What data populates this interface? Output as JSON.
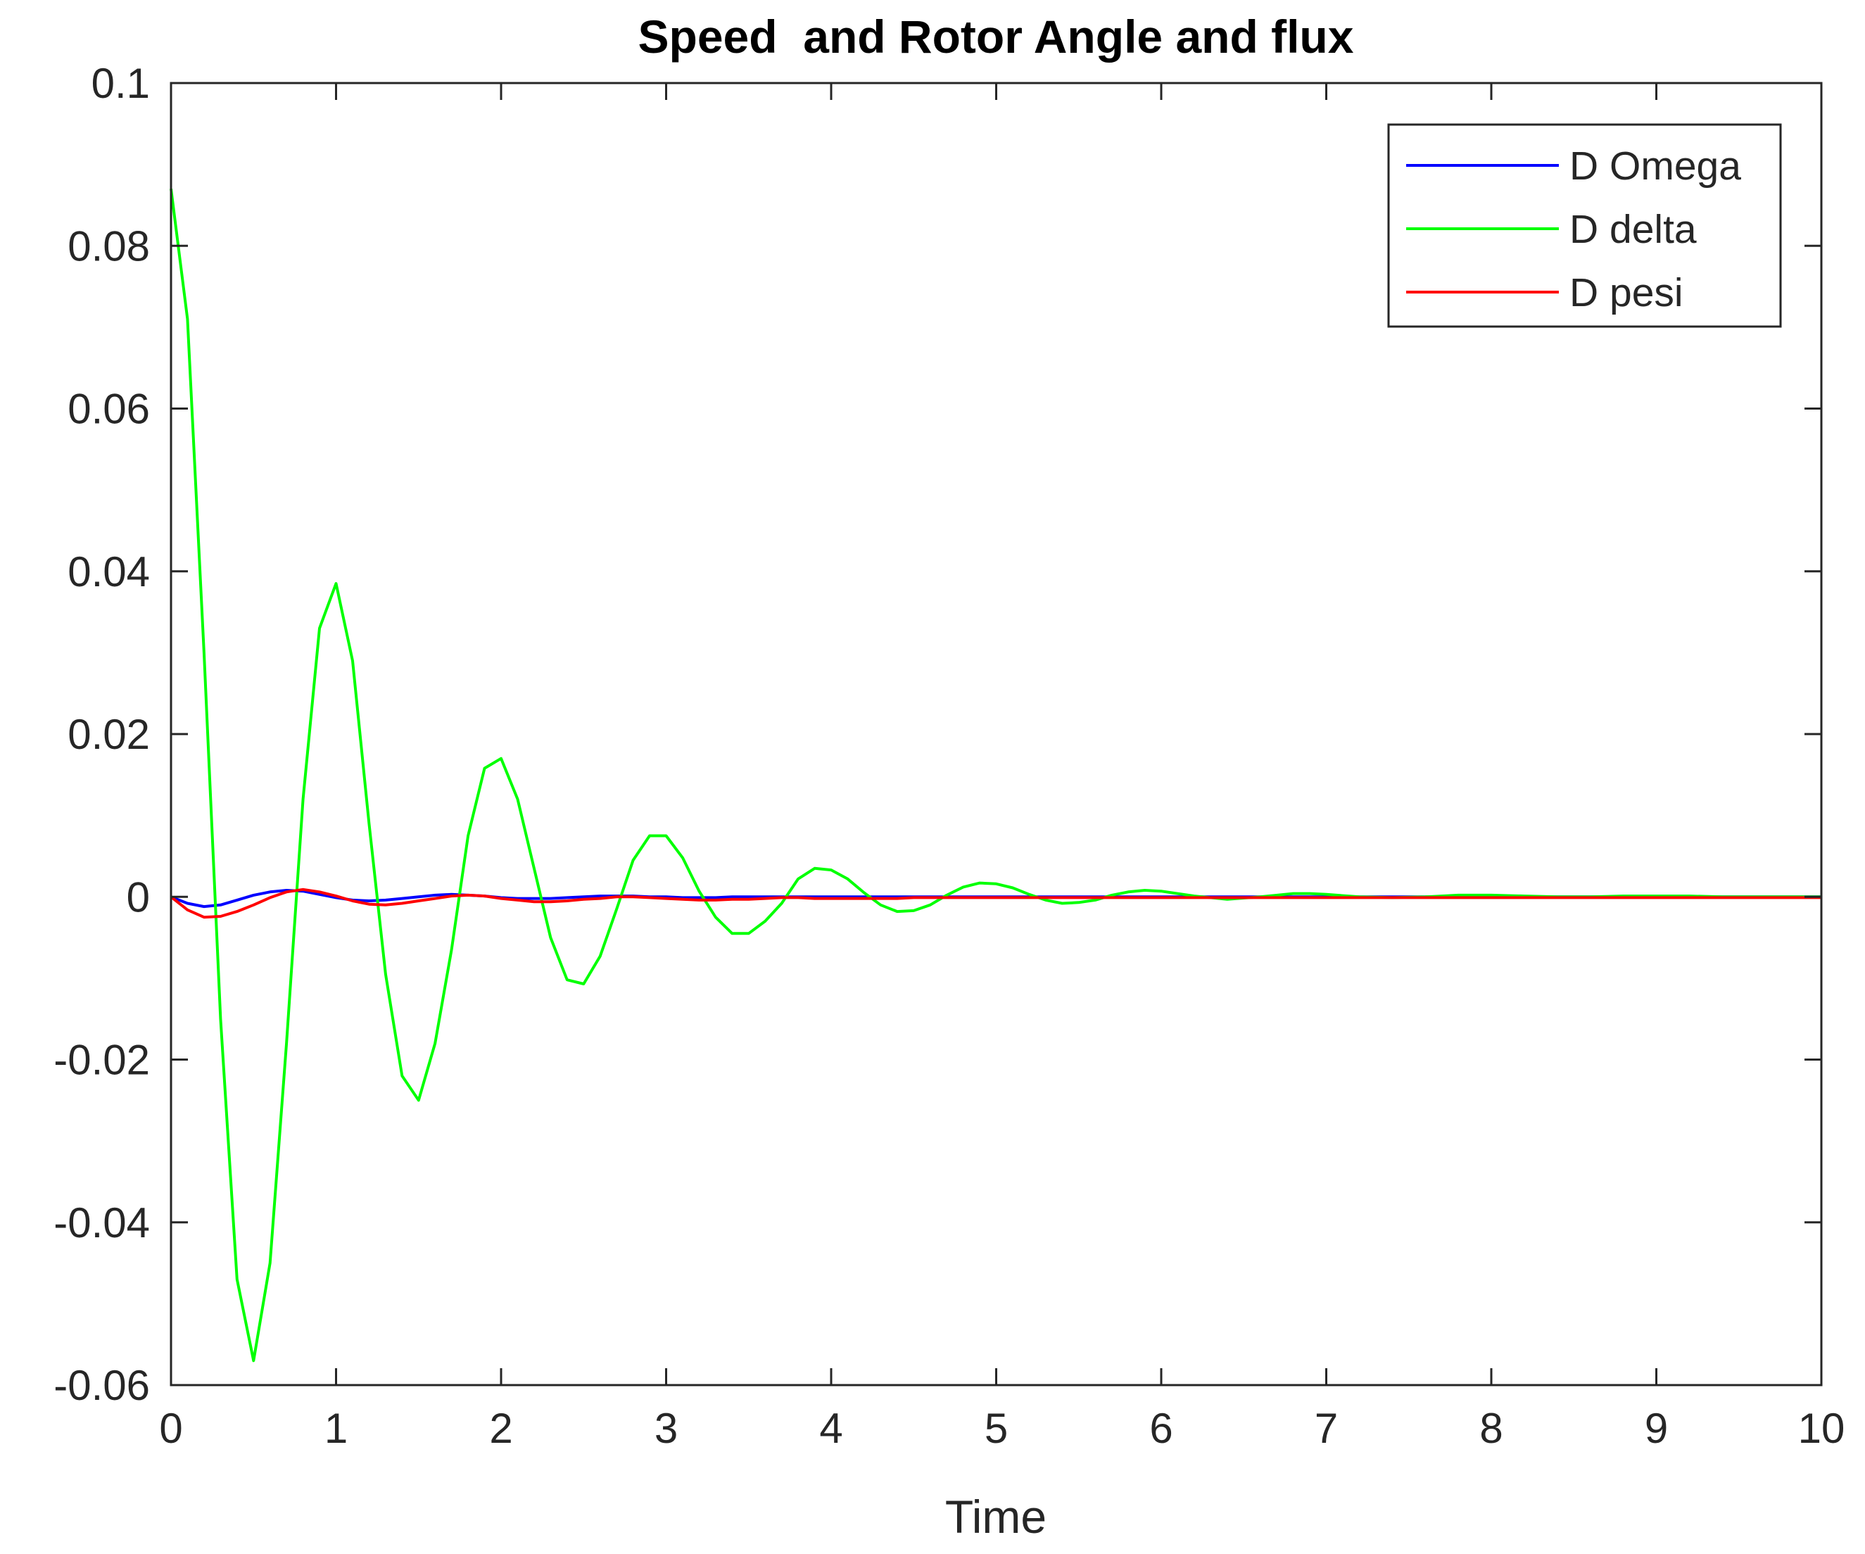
{
  "chart_data": {
    "type": "line",
    "title": "Speed  and Rotor Angle and flux",
    "xlabel": "Time",
    "ylabel": "",
    "xlim": [
      0,
      10
    ],
    "ylim": [
      -0.06,
      0.1
    ],
    "x_ticks": [
      "0",
      "1",
      "2",
      "3",
      "4",
      "5",
      "6",
      "7",
      "8",
      "9",
      "10"
    ],
    "y_ticks": [
      "-0.06",
      "-0.04",
      "-0.02",
      "0",
      "0.02",
      "0.04",
      "0.06",
      "0.08",
      "0.1"
    ],
    "grid": false,
    "legend_position": "top-right",
    "x": [
      0,
      0.1,
      0.2,
      0.3,
      0.4,
      0.5,
      0.6,
      0.7,
      0.8,
      0.9,
      1.0,
      1.1,
      1.2,
      1.3,
      1.4,
      1.5,
      1.6,
      1.7,
      1.8,
      1.9,
      2.0,
      2.1,
      2.2,
      2.3,
      2.4,
      2.5,
      2.6,
      2.7,
      2.8,
      2.9,
      3.0,
      3.1,
      3.2,
      3.3,
      3.4,
      3.5,
      3.6,
      3.7,
      3.8,
      3.9,
      4.0,
      4.1,
      4.2,
      4.3,
      4.4,
      4.5,
      4.6,
      4.7,
      4.8,
      4.9,
      5.0,
      5.1,
      5.2,
      5.3,
      5.4,
      5.5,
      5.6,
      5.7,
      5.8,
      5.9,
      6.0,
      6.2,
      6.4,
      6.6,
      6.8,
      6.9,
      7.0,
      7.2,
      7.4,
      7.6,
      7.8,
      8.0,
      8.2,
      8.4,
      8.6,
      8.8,
      9.0,
      9.2,
      9.4,
      9.6,
      9.8,
      10.0
    ],
    "series": [
      {
        "name": "D Omega",
        "color": "#0000ff",
        "values": [
          0,
          -0.0008,
          -0.0012,
          -0.001,
          -0.0004,
          0.0002,
          0.0006,
          0.0008,
          0.0007,
          0.0003,
          -0.0001,
          -0.0004,
          -0.0005,
          -0.0004,
          -0.0002,
          0,
          0.0002,
          0.0003,
          0.0002,
          0.0001,
          -0.0001,
          -0.0002,
          -0.0002,
          -0.0002,
          -0.0001,
          0,
          0.0001,
          0.0001,
          0.0001,
          0,
          0,
          -0.0001,
          -0.0001,
          -0.0001,
          0,
          0,
          0,
          0,
          0,
          0,
          0,
          0,
          0,
          0,
          0,
          0,
          0,
          0,
          0,
          0,
          0,
          0,
          0,
          0,
          0,
          0,
          0,
          0,
          0,
          0,
          0,
          0,
          0,
          0,
          0,
          0,
          0,
          0,
          0,
          0,
          0,
          0,
          0,
          0,
          0,
          0,
          0,
          0,
          0,
          0,
          0,
          0
        ]
      },
      {
        "name": "D delta",
        "color": "#00ff00",
        "values": [
          0.087,
          0.071,
          0.03,
          -0.015,
          -0.047,
          -0.057,
          -0.045,
          -0.018,
          0.012,
          0.033,
          0.0385,
          0.029,
          0.009,
          -0.0095,
          -0.022,
          -0.025,
          -0.018,
          -0.0065,
          0.0075,
          0.0158,
          0.017,
          0.012,
          0.0035,
          -0.005,
          -0.0102,
          -0.0107,
          -0.0073,
          -0.0015,
          0.0045,
          0.0075,
          0.0075,
          0.0048,
          0.0007,
          -0.0025,
          -0.0045,
          -0.0045,
          -0.003,
          -0.0008,
          0.0022,
          0.0035,
          0.0033,
          0.0022,
          0.0005,
          -0.001,
          -0.0018,
          -0.0017,
          -0.001,
          0.0002,
          0.0012,
          0.0017,
          0.0016,
          0.0011,
          0.0003,
          -0.0004,
          -0.0008,
          -0.0007,
          -0.0004,
          0.0002,
          0.0006,
          0.0008,
          0.0007,
          0.0001,
          -0.0003,
          0,
          0.0004,
          0.0004,
          0.0003,
          0,
          -0.0001,
          0,
          0.0002,
          0.0002,
          0.0001,
          0,
          0,
          0.0001,
          0.0001,
          0.0001,
          0,
          0,
          0,
          0
        ]
      },
      {
        "name": "D pesi",
        "color": "#ff0000",
        "values": [
          0,
          -0.0016,
          -0.0025,
          -0.0024,
          -0.0018,
          -0.001,
          -0.0001,
          0.0006,
          0.0009,
          0.0006,
          0.0001,
          -0.0005,
          -0.0009,
          -0.001,
          -0.0008,
          -0.0005,
          -0.0002,
          0.0001,
          0.0002,
          0.0001,
          -0.0002,
          -0.0004,
          -0.0006,
          -0.0006,
          -0.0005,
          -0.0003,
          -0.0002,
          0,
          0,
          -0.0001,
          -0.0002,
          -0.0003,
          -0.0004,
          -0.0004,
          -0.0003,
          -0.0003,
          -0.0002,
          -0.0001,
          -0.0001,
          -0.0002,
          -0.0002,
          -0.0002,
          -0.0002,
          -0.0002,
          -0.0002,
          -0.0001,
          -0.0001,
          -0.0001,
          -0.0001,
          -0.0001,
          -0.0001,
          -0.0001,
          -0.0001,
          -0.0001,
          -0.0001,
          -0.0001,
          -0.0001,
          -0.0001,
          -0.0001,
          -0.0001,
          -0.0001,
          -0.0001,
          -0.0001,
          -0.0001,
          -0.0001,
          -0.0001,
          -0.0001,
          -0.0001,
          -0.0001,
          -0.0001,
          -0.0001,
          -0.0001,
          -0.0001,
          -0.0001,
          -0.0001,
          -0.0001,
          -0.0001,
          -0.0001,
          -0.0001,
          -0.0001,
          -0.0001,
          -0.0001
        ]
      }
    ]
  }
}
